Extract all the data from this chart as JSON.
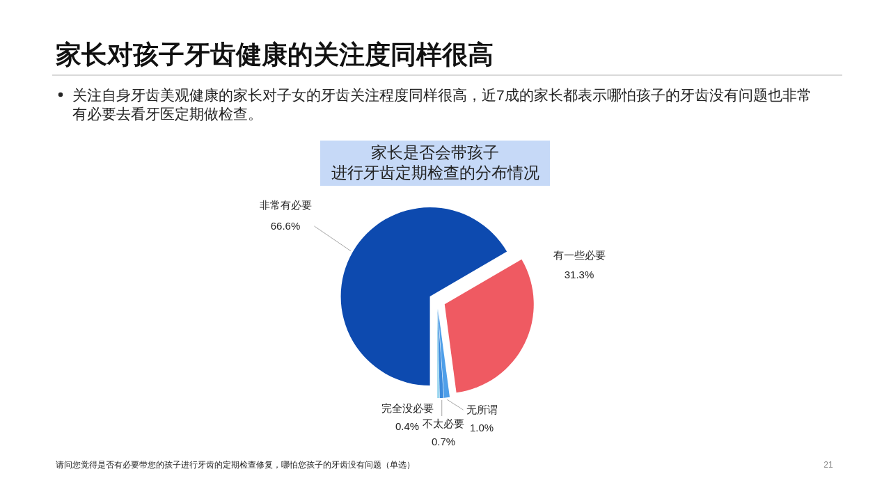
{
  "chart_data": {
    "type": "pie",
    "title": "家长对孩子牙齿健康的关注度同样很高",
    "subtitle": "家长是否会带孩子进行牙齿定期检查的分布情况",
    "categories": [
      "非常有必要",
      "有一些必要",
      "无所谓",
      "不太必要",
      "完全没必要"
    ],
    "values": [
      66.6,
      31.3,
      1.0,
      0.7,
      0.4
    ],
    "colors": [
      "#0d4aaf",
      "#ef5a62",
      "#4f9fe9",
      "#3d8bdc",
      "#9bd7ef"
    ],
    "value_labels": [
      "66.6%",
      "31.3%",
      "1.0%",
      "0.7%",
      "0.4%"
    ],
    "annotations": [
      "关注自身牙齿美观健康的家长对子女的牙齿关注程度同样很高，近7成的家长都表示哪怕孩子的牙齿没有问题也非常有必要去看牙医定期做检查。",
      "请问您觉得是否有必要带您的孩子进行牙齿的定期检查修复，哪怕您孩子的牙齿没有问题（单选）",
      "21"
    ]
  }
}
